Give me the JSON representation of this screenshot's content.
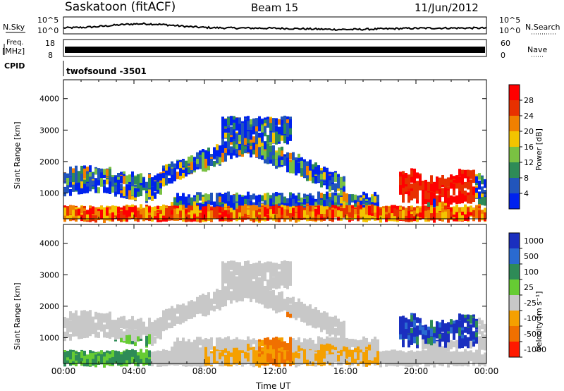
{
  "header": {
    "station": "Saskatoon (fitACF)",
    "beam": "Beam 15",
    "date": "11/Jun/2012"
  },
  "status_panels": {
    "nsky_label": "N.Sky",
    "nsky_ticks": [
      "10^5",
      "10^0"
    ],
    "nsearch_label": "N.Search",
    "nsearch_ticks": [
      "10^5",
      "10^0"
    ],
    "freq_label_line1": "Freq.",
    "freq_label_line2": "[MHz]",
    "freq_ticks": [
      "18",
      "8"
    ],
    "nave_label": "Nave",
    "nave_ticks": [
      "60",
      "0"
    ],
    "cpid_label": "CPID",
    "cpid_value": "twofsound -3501"
  },
  "chart_data": [
    {
      "type": "heatmap",
      "panel": "power",
      "ylabel": "Slant Range [km]",
      "ylim": [
        180,
        4600
      ],
      "yticks": [
        "1000",
        "2000",
        "3000",
        "4000"
      ],
      "x_ticks": [
        "00:00",
        "04:00",
        "08:00",
        "12:00",
        "16:00",
        "20:00",
        "00:00"
      ],
      "xlim_hours": [
        0,
        24
      ],
      "colorbar_label": "Power [dB]",
      "colorbar_ticks": [
        "4",
        "8",
        "12",
        "16",
        "20",
        "24",
        "28"
      ],
      "colorbar_range": [
        0,
        30
      ],
      "colors": [
        "#0022ee",
        "#2255bb",
        "#2e8b57",
        "#7ac142",
        "#f3c400",
        "#f08000",
        "#e83000",
        "#ff0000"
      ]
    },
    {
      "type": "heatmap",
      "panel": "velocity",
      "ylabel": "Slant Range [km]",
      "ylim": [
        180,
        4600
      ],
      "yticks": [
        "1000",
        "2000",
        "3000",
        "4000"
      ],
      "x_ticks": [
        "00:00",
        "04:00",
        "08:00",
        "12:00",
        "16:00",
        "20:00",
        "00:00"
      ],
      "xlabel": "Time UT",
      "xlim_hours": [
        0,
        24
      ],
      "colorbar_label": "Velocity [m s⁻¹]",
      "colorbar_ticks": [
        "1000",
        "500",
        "100",
        "25",
        "-25",
        "-100",
        "-500",
        "-1000"
      ],
      "colors": [
        "#1a2fbf",
        "#2a6ad0",
        "#2e8b57",
        "#66cc33",
        "#c8c8c8",
        "#f5a000",
        "#f07000",
        "#ff1a00"
      ]
    }
  ]
}
